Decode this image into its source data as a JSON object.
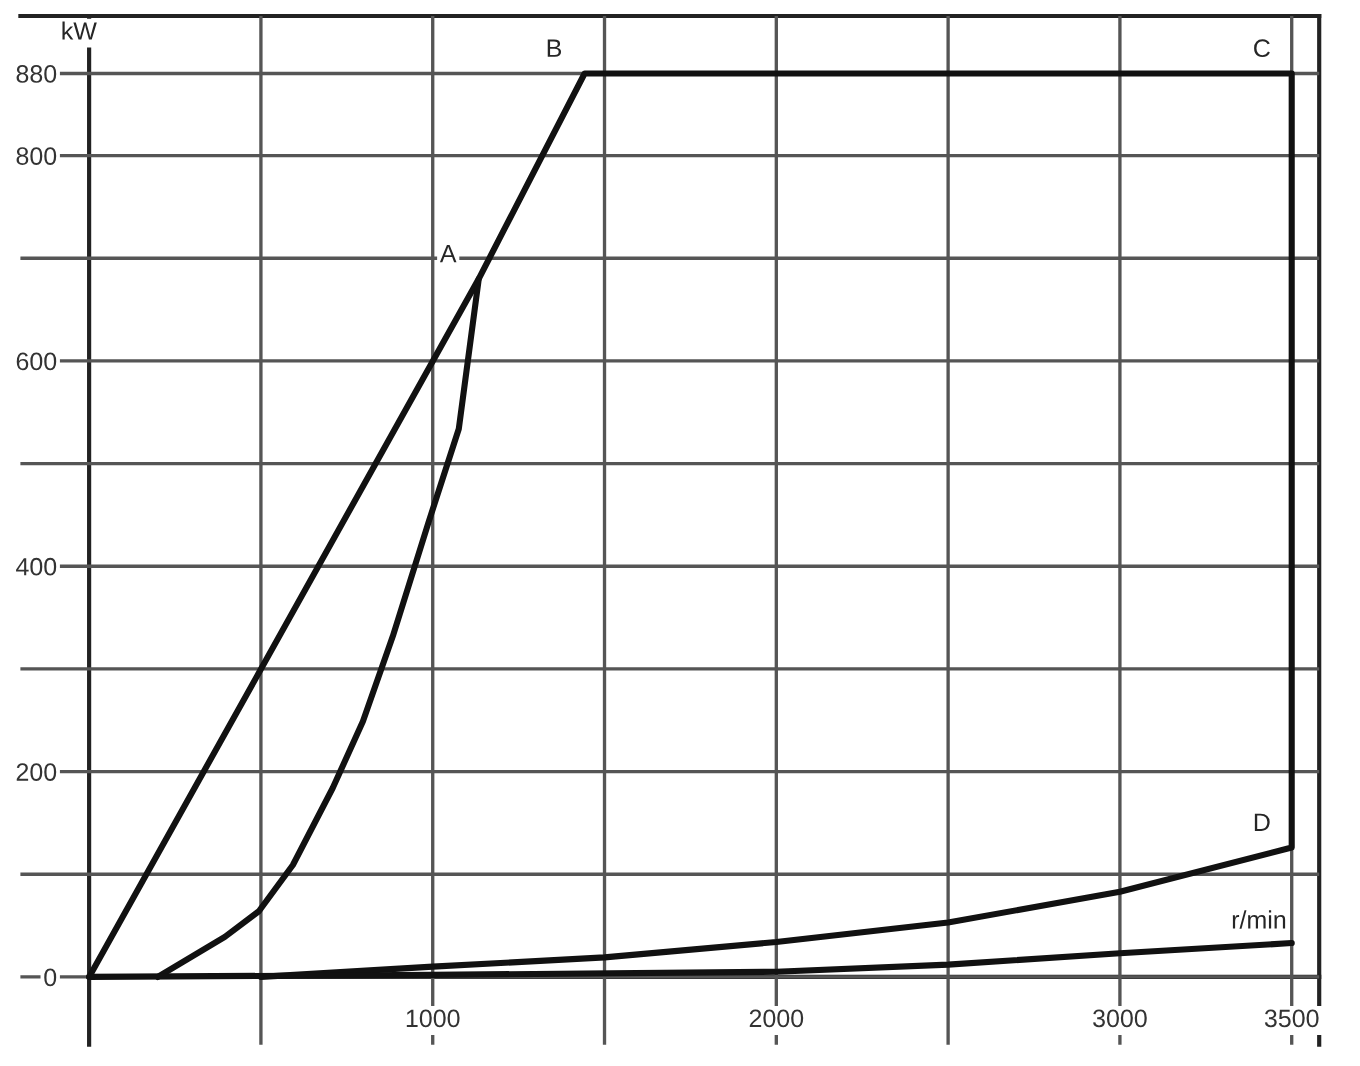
{
  "chart_data": {
    "type": "line",
    "xlabel": "r/min",
    "ylabel": "kW",
    "series": [
      {
        "color": "#111111",
        "x": [
          0,
          1134
        ],
        "values": [
          0,
          680
        ]
      },
      {
        "color": "#111111",
        "x": [
          200,
          395,
          494,
          593,
          709,
          797,
          884,
          988,
          1076,
          1134,
          1442,
          3500,
          3500,
          3000,
          2500,
          2000,
          1500,
          1000,
          500
        ],
        "values": [
          0,
          39,
          64,
          109,
          184,
          249,
          332,
          443,
          534,
          680,
          880,
          880,
          126,
          83,
          53,
          34,
          19,
          10,
          0
        ]
      },
      {
        "color": "#111111",
        "x": [
          0,
          1000,
          2000,
          2500,
          3000,
          3500
        ],
        "values": [
          0,
          2,
          5,
          12,
          23,
          33
        ]
      }
    ],
    "annotations": [
      {
        "text": "A",
        "x": 1134,
        "y": 680
      },
      {
        "text": "B",
        "x": 1442,
        "y": 880
      },
      {
        "text": "C",
        "x": 3500,
        "y": 880
      },
      {
        "text": "D",
        "x": 3500,
        "y": 126
      }
    ],
    "xlim": [
      -200,
      3580
    ],
    "ylim": [
      -66,
      936
    ],
    "xticks": [
      {
        "value": 500,
        "label": null
      },
      1000,
      {
        "value": 1500,
        "label": null
      },
      2000,
      {
        "value": 2500,
        "label": null
      },
      3000,
      3500
    ],
    "yticks": [
      0,
      {
        "value": 100,
        "label": null
      },
      200,
      {
        "value": 300,
        "label": null
      },
      400,
      {
        "value": 500,
        "label": null
      },
      600,
      {
        "value": 700,
        "label": null
      },
      800,
      880
    ],
    "grid": true,
    "legend": false
  }
}
